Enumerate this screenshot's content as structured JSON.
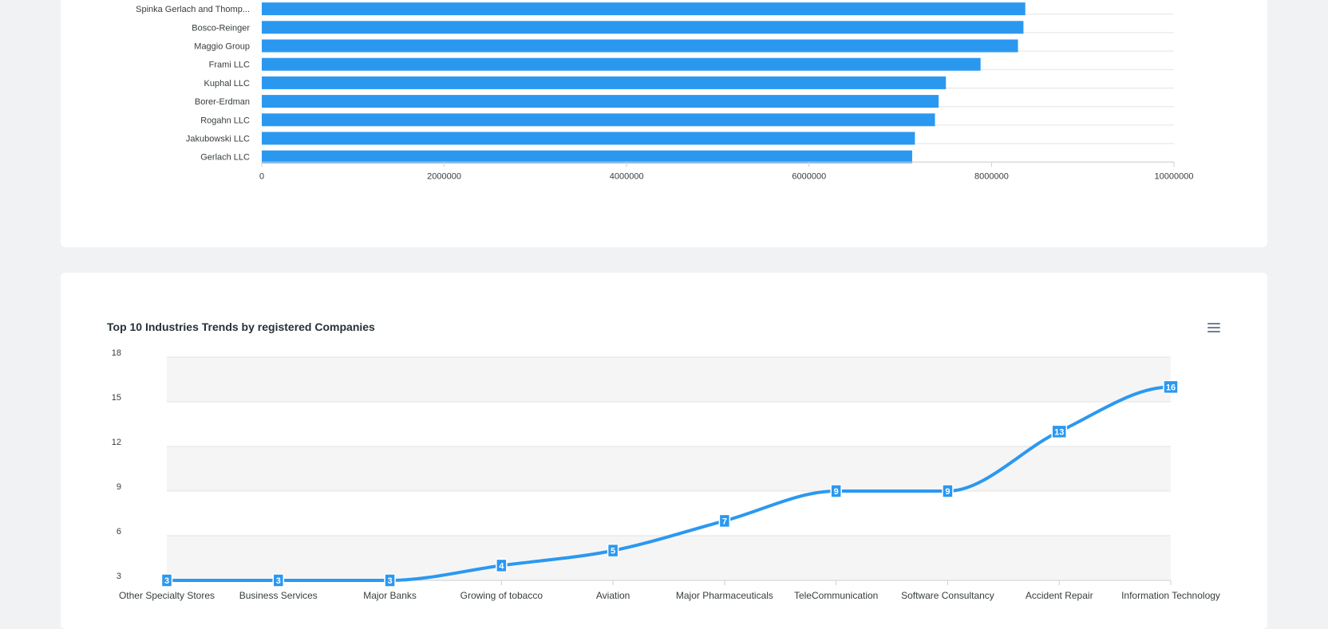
{
  "colors": {
    "accent": "#2b98f0",
    "grid": "#e3e3e3",
    "band": "#f5f5f5",
    "text": "#373d3f"
  },
  "menu_icon": "hamburger-icon",
  "chart_data": [
    {
      "type": "bar",
      "orientation": "horizontal",
      "title": "",
      "categories": [
        "Spinka Gerlach and Thomp...",
        "Bosco-Reinger",
        "Maggio Group",
        "Frami LLC",
        "Kuphal LLC",
        "Borer-Erdman",
        "Rogahn LLC",
        "Jakubowski LLC",
        "Gerlach LLC"
      ],
      "values": [
        8370000,
        8350000,
        8290000,
        7880000,
        7500000,
        7420000,
        7380000,
        7160000,
        7130000
      ],
      "xlim": [
        0,
        10000000
      ],
      "xticks": [
        "0",
        "2000000",
        "4000000",
        "6000000",
        "8000000",
        "10000000"
      ],
      "grid": true
    },
    {
      "type": "line",
      "title": "Top 10 Industries Trends by registered Companies",
      "categories": [
        "Other Specialty Stores",
        "Business Services",
        "Major Banks",
        "Growing of tobacco",
        "Aviation",
        "Major Pharmaceuticals",
        "TeleCommunication",
        "Software Consultancy",
        "Accident Repair",
        "Information Technology"
      ],
      "values": [
        3,
        3,
        3,
        4,
        5,
        7,
        9,
        9,
        13,
        16
      ],
      "ylim": [
        3,
        18
      ],
      "yticks": [
        "3",
        "6",
        "9",
        "12",
        "15",
        "18"
      ],
      "grid": true,
      "data_labels": true
    }
  ]
}
